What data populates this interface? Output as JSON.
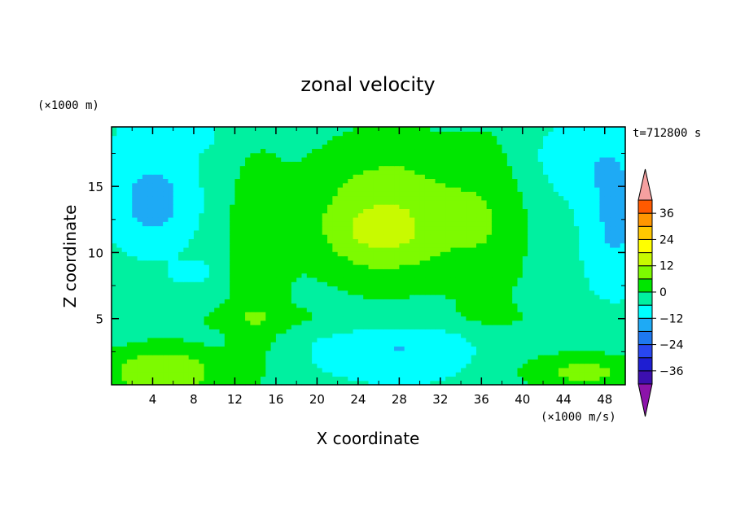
{
  "chart_data": {
    "type": "heatmap",
    "title": "zonal velocity",
    "xlabel": "X coordinate",
    "ylabel": "Z coordinate",
    "x_unit_label": "(×1000 m/s)",
    "y_unit_label": "(×1000 m)",
    "time_label": "t=712800 s",
    "xlim": [
      0,
      50
    ],
    "ylim": [
      0,
      19.5
    ],
    "x_ticks": [
      "4",
      "8",
      "12",
      "16",
      "20",
      "24",
      "28",
      "32",
      "36",
      "40",
      "44",
      "48"
    ],
    "x_tick_values": [
      4,
      8,
      12,
      16,
      20,
      24,
      28,
      32,
      36,
      40,
      44,
      48
    ],
    "y_ticks": [
      "5",
      "10",
      "15"
    ],
    "y_tick_values": [
      5,
      10,
      15
    ],
    "colorbar": {
      "ticks": [
        "36",
        "24",
        "12",
        "0",
        "−12",
        "−24",
        "−36"
      ],
      "tick_values": [
        36,
        24,
        12,
        0,
        -12,
        -24,
        -36
      ],
      "levels": [
        -42,
        -36,
        -30,
        -24,
        -18,
        -12,
        -6,
        0,
        6,
        12,
        18,
        24,
        30,
        36,
        42
      ],
      "colors": [
        "#6a14a8",
        "#3c0faf",
        "#1e1ed2",
        "#2846f0",
        "#1e78f0",
        "#1eaaf5",
        "#00ffff",
        "#00f0a0",
        "#00e600",
        "#7dfa00",
        "#c8fa00",
        "#ffff00",
        "#ffc800",
        "#ff9600",
        "#ff5a00",
        "#ff1e00"
      ],
      "under_color": "#8c14aa",
      "over_color": "#f5a0a0"
    },
    "grid": false
  }
}
